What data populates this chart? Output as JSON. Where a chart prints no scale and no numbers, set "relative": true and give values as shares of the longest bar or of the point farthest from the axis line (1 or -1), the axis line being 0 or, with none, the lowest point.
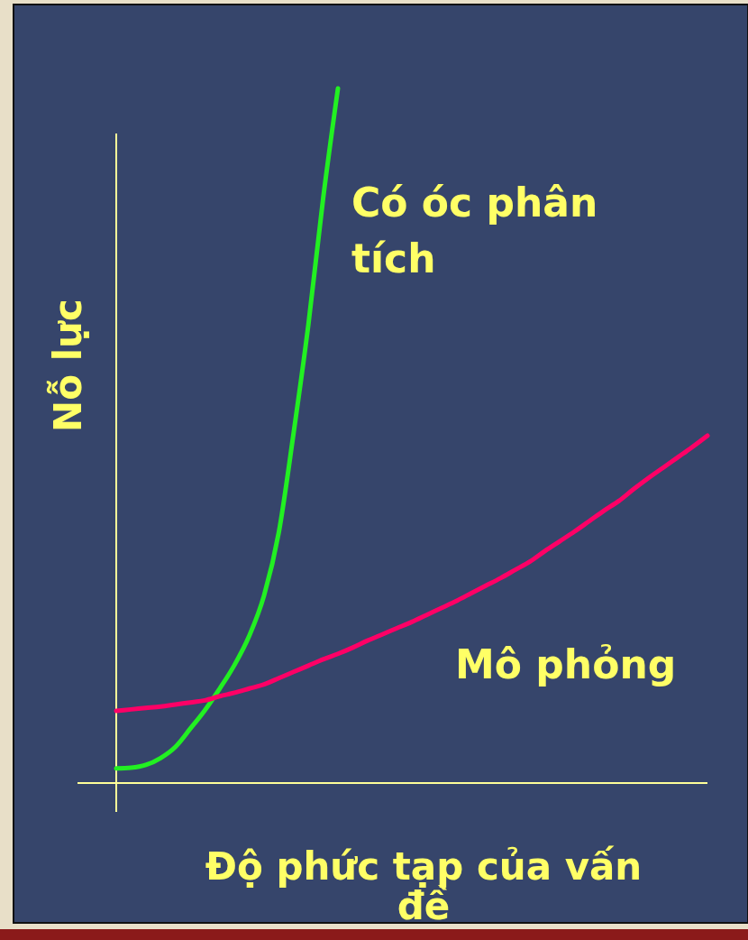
{
  "chart_data": {
    "type": "line",
    "relative": true,
    "xlabel": "Độ phức tạp của vấn đề",
    "ylabel": "Nỗ lực",
    "categories": [
      null,
      null,
      null,
      null,
      null,
      null,
      null,
      null,
      null,
      null,
      null,
      null,
      null,
      null,
      null,
      null,
      null,
      null,
      null,
      null,
      null,
      null,
      null,
      null,
      null,
      null,
      null,
      null,
      null,
      null,
      null,
      null,
      null,
      null,
      null,
      null,
      null,
      null,
      null,
      null,
      null
    ],
    "series": [
      {
        "name": "Có óc phân tích",
        "color": "#22f022",
        "values": [
          0.021,
          0.022,
          0.026,
          0.036,
          0.052,
          0.078,
          0.105,
          0.136,
          0.17,
          0.212,
          0.27,
          0.361,
          0.504,
          0.66,
          0.842,
          1,
          null,
          null,
          null,
          null,
          null,
          null,
          null,
          null,
          null,
          null,
          null,
          null,
          null,
          null,
          null,
          null,
          null,
          null,
          null,
          null,
          null,
          null,
          null,
          null,
          null
        ]
      },
      {
        "name": "Mô phỏng",
        "color": "#ff0066",
        "values": [
          0.104,
          0.106,
          0.108,
          0.11,
          0.113,
          0.116,
          0.119,
          0.125,
          0.13,
          0.136,
          0.142,
          0.151,
          0.16,
          0.169,
          0.178,
          0.186,
          0.195,
          0.205,
          0.214,
          0.223,
          0.232,
          0.242,
          0.252,
          0.262,
          0.273,
          0.284,
          0.295,
          0.307,
          0.319,
          0.334,
          0.348,
          0.362,
          0.377,
          0.392,
          0.406,
          0.423,
          0.439,
          0.454,
          0.469,
          0.484,
          0.5
        ]
      }
    ]
  }
}
